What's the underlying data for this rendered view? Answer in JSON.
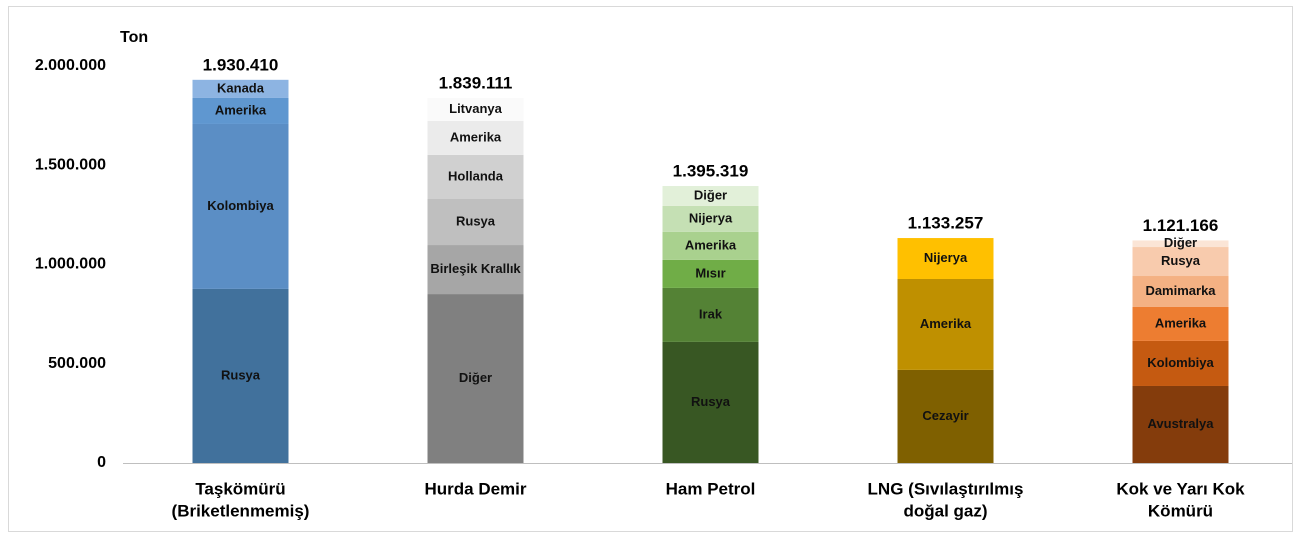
{
  "chart_data": {
    "type": "stacked-bar",
    "y_unit": "Ton",
    "ylim": [
      0,
      2000000
    ],
    "yticks": [
      0,
      {
        "value": 500000,
        "label": "500.000"
      },
      {
        "value": 1000000,
        "label": "1.000.000"
      },
      {
        "value": 1500000,
        "label": "1.500.000"
      },
      {
        "value": 2000000,
        "label": "2.000.000"
      }
    ],
    "stacks": [
      {
        "category": [
          "Taşkömürü",
          "(Briketlenmemiş)"
        ],
        "total": 1930410,
        "total_label": "1.930.410",
        "segments": [
          {
            "name": "Rusya",
            "value": 877000,
            "color": "#41719c"
          },
          {
            "name": "Kolombiya",
            "value": 831000,
            "color": "#5b8ec5"
          },
          {
            "name": "Amerika",
            "value": 131000,
            "color": "#5f97d0"
          },
          {
            "name": "Kanada",
            "value": 91410,
            "color": "#8db4e2"
          }
        ]
      },
      {
        "category": [
          "Hurda Demir"
        ],
        "total": 1839111,
        "total_label": "1.839.111",
        "segments": [
          {
            "name": "Diğer",
            "value": 851000,
            "color": "#808080"
          },
          {
            "name": "Birleşik Krallık",
            "value": 247000,
            "color": "#a6a6a6"
          },
          {
            "name": "Rusya",
            "value": 232000,
            "color": "#bfbfbf"
          },
          {
            "name": "Hollanda",
            "value": 222000,
            "color": "#d0d0d0"
          },
          {
            "name": "Amerika",
            "value": 171000,
            "color": "#ebebeb"
          },
          {
            "name": "Litvanya",
            "value": 116111,
            "color": "#fafafa"
          }
        ]
      },
      {
        "category": [
          "Ham Petrol"
        ],
        "total": 1395319,
        "total_label": "1.395.319",
        "segments": [
          {
            "name": "Rusya",
            "value": 610000,
            "color": "#385723"
          },
          {
            "name": "Irak",
            "value": 272000,
            "color": "#548235"
          },
          {
            "name": "Mısır",
            "value": 141000,
            "color": "#70ad47"
          },
          {
            "name": "Amerika",
            "value": 141000,
            "color": "#a9d18e"
          },
          {
            "name": "Nijerya",
            "value": 131000,
            "color": "#c5e0b4"
          },
          {
            "name": "Diğer",
            "value": 100319,
            "color": "#e2f0d9"
          }
        ]
      },
      {
        "category": [
          "LNG (Sıvılaştırılmış",
          "doğal gaz)"
        ],
        "total": 1133257,
        "total_label": "1.133.257",
        "segments": [
          {
            "name": "Cezayir",
            "value": 469000,
            "color": "#7f6000"
          },
          {
            "name": "Amerika",
            "value": 458000,
            "color": "#bf9000"
          },
          {
            "name": "Nijerya",
            "value": 206257,
            "color": "#ffc000"
          }
        ]
      },
      {
        "category": [
          "Kok ve Yarı Kok",
          "Kömürü"
        ],
        "total": 1121166,
        "total_label": "1.121.166",
        "segments": [
          {
            "name": "Avustralya",
            "value": 388000,
            "color": "#843c0c"
          },
          {
            "name": "Kolombiya",
            "value": 227000,
            "color": "#c55a11"
          },
          {
            "name": "Amerika",
            "value": 171000,
            "color": "#ed7d31"
          },
          {
            "name": "Damimarka",
            "value": 156000,
            "color": "#f4b183"
          },
          {
            "name": "Rusya",
            "value": 146000,
            "color": "#f8cbad"
          },
          {
            "name": "Diğer",
            "value": 33166,
            "color": "#fbe5d6"
          }
        ]
      }
    ]
  }
}
